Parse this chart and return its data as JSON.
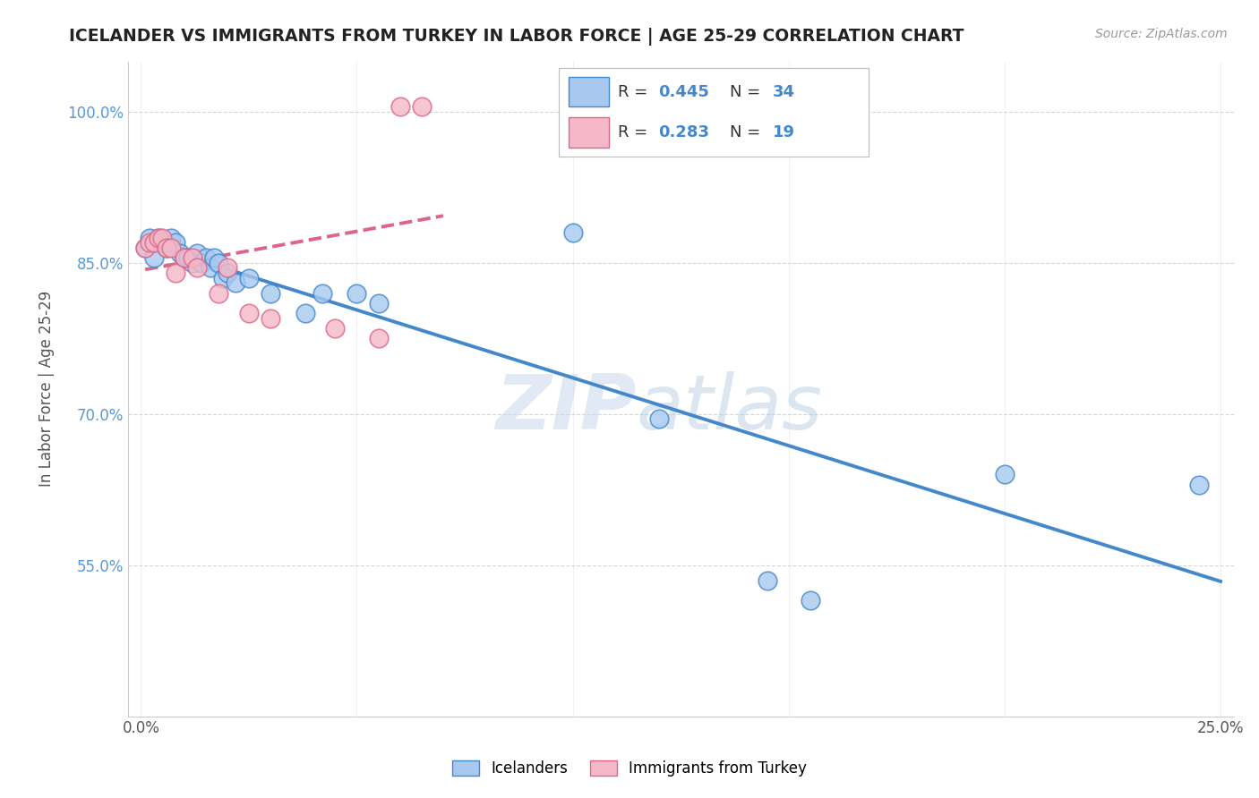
{
  "title": "ICELANDER VS IMMIGRANTS FROM TURKEY IN LABOR FORCE | AGE 25-29 CORRELATION CHART",
  "source": "Source: ZipAtlas.com",
  "ylabel": "In Labor Force | Age 25-29",
  "xlim": [
    0.0,
    0.25
  ],
  "ylim": [
    0.4,
    1.05
  ],
  "xticks": [
    0.0,
    0.05,
    0.1,
    0.15,
    0.2,
    0.25
  ],
  "yticks": [
    0.55,
    0.7,
    0.85,
    1.0
  ],
  "ytick_labels": [
    "55.0%",
    "70.0%",
    "85.0%",
    "100.0%"
  ],
  "xtick_labels": [
    "0.0%",
    "",
    "",
    "",
    "",
    "25.0%"
  ],
  "legend_labels": [
    "Icelanders",
    "Immigrants from Turkey"
  ],
  "blue_R": 0.445,
  "blue_N": 34,
  "pink_R": 0.283,
  "pink_N": 19,
  "blue_color": "#a8c8f0",
  "pink_color": "#f4b8c8",
  "blue_line_color": "#4488cc",
  "pink_line_color": "#dd6688",
  "watermark_zip": "ZIP",
  "watermark_atlas": "atlas",
  "blue_points_x": [
    0.001,
    0.002,
    0.003,
    0.003,
    0.004,
    0.005,
    0.006,
    0.007,
    0.008,
    0.009,
    0.01,
    0.011,
    0.012,
    0.013,
    0.014,
    0.015,
    0.016,
    0.017,
    0.018,
    0.019,
    0.02,
    0.022,
    0.025,
    0.03,
    0.038,
    0.042,
    0.05,
    0.055,
    0.1,
    0.12,
    0.145,
    0.155,
    0.2,
    0.245
  ],
  "blue_points_y": [
    0.865,
    0.875,
    0.87,
    0.855,
    0.875,
    0.87,
    0.865,
    0.875,
    0.87,
    0.86,
    0.855,
    0.855,
    0.85,
    0.86,
    0.85,
    0.855,
    0.845,
    0.855,
    0.85,
    0.835,
    0.84,
    0.83,
    0.835,
    0.82,
    0.8,
    0.82,
    0.82,
    0.81,
    0.88,
    0.695,
    0.535,
    0.515,
    0.64,
    0.63
  ],
  "pink_points_x": [
    0.001,
    0.002,
    0.003,
    0.004,
    0.005,
    0.006,
    0.007,
    0.008,
    0.01,
    0.012,
    0.013,
    0.018,
    0.02,
    0.025,
    0.03,
    0.045,
    0.055,
    0.06,
    0.065
  ],
  "pink_points_y": [
    0.865,
    0.87,
    0.87,
    0.875,
    0.875,
    0.865,
    0.865,
    0.84,
    0.855,
    0.855,
    0.845,
    0.82,
    0.845,
    0.8,
    0.795,
    0.785,
    0.775,
    1.005,
    1.005
  ]
}
